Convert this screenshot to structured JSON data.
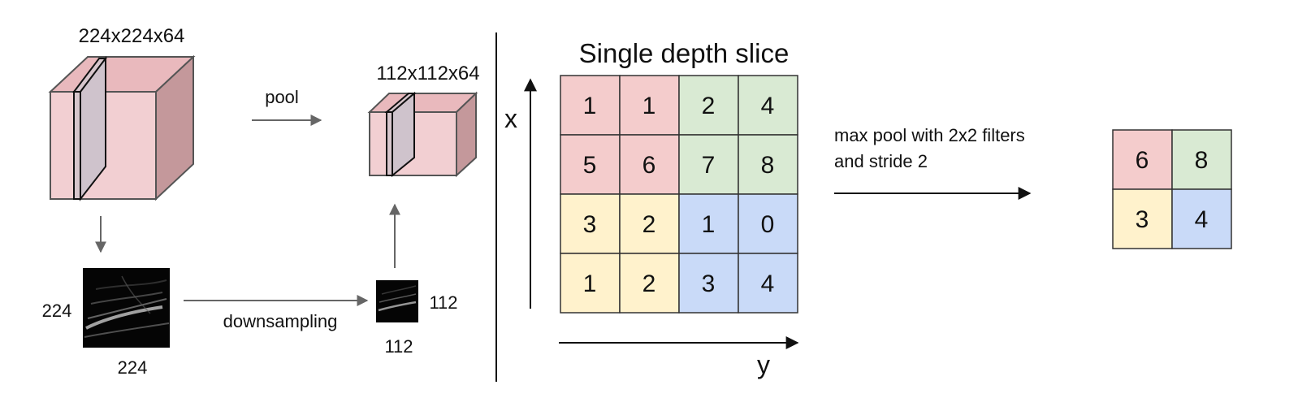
{
  "left_panel": {
    "input_volume_label": "224x224x64",
    "pooled_volume_label": "112x112x64",
    "pool_label": "pool",
    "downsampling_label": "downsampling",
    "input_map_height": "224",
    "input_map_width": "224",
    "output_map_height": "112",
    "output_map_width": "112",
    "colors": {
      "volume_front": "#f2cfd2",
      "volume_top": "#e9b9bd",
      "volume_side": "#c4989b",
      "slice_fill": "#d2c4cc",
      "edge": "#555555",
      "arrow": "#666666"
    }
  },
  "right_panel": {
    "title": "Single depth slice",
    "x_axis_label": "x",
    "y_axis_label": "y",
    "grid": [
      [
        "1",
        "1",
        "2",
        "4"
      ],
      [
        "5",
        "6",
        "7",
        "8"
      ],
      [
        "3",
        "2",
        "1",
        "0"
      ],
      [
        "1",
        "2",
        "3",
        "4"
      ]
    ],
    "operation_label_line1": "max pool with 2x2 filters",
    "operation_label_line2": "and stride 2",
    "result": [
      [
        "6",
        "8"
      ],
      [
        "3",
        "4"
      ]
    ],
    "colors": {
      "red_quadrant": "#f4cccc",
      "green_quadrant": "#d9ead3",
      "yellow_quadrant": "#fff2cc",
      "blue_quadrant": "#c9daf8",
      "grid_line": "#333333"
    }
  }
}
